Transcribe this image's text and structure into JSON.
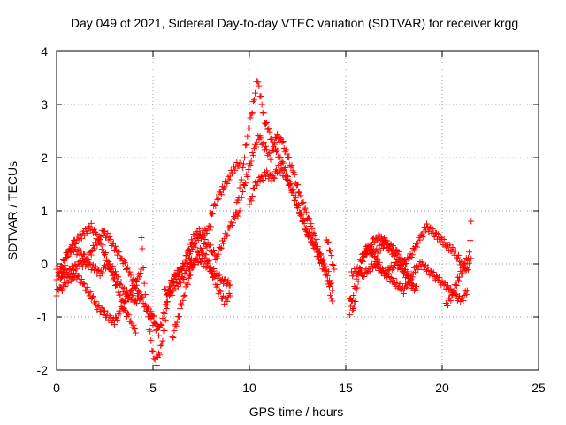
{
  "chart_data": {
    "type": "scatter",
    "title": "Day 049 of 2021, Sidereal Day-to-day VTEC variation (SDTVAR) for receiver krgg",
    "xlabel": "GPS time / hours",
    "ylabel": "SDTVAR / TECUs",
    "xlim": [
      0,
      25
    ],
    "ylim": [
      -2,
      4
    ],
    "x_ticks": [
      0,
      5,
      10,
      15,
      20,
      25
    ],
    "y_ticks": [
      -2,
      -1,
      0,
      1,
      2,
      3,
      4
    ],
    "x_tick_labels": [
      "0",
      "5",
      "10",
      "15",
      "20",
      "25"
    ],
    "y_tick_labels": [
      "-2",
      "-1",
      "0",
      "1",
      "2",
      "3",
      "4"
    ],
    "grid": true,
    "marker": "plus",
    "series": [
      {
        "name": "satellite tracks",
        "color": "#ff0000",
        "tracks": [
          [
            [
              0.0,
              -0.6
            ],
            [
              0.3,
              -0.2
            ],
            [
              0.6,
              0.2
            ],
            [
              0.9,
              0.4
            ],
            [
              1.2,
              0.5
            ],
            [
              1.5,
              0.6
            ],
            [
              1.8,
              0.7
            ],
            [
              2.1,
              0.5
            ],
            [
              2.4,
              0.3
            ],
            [
              2.7,
              0.0
            ],
            [
              3.0,
              -0.3
            ],
            [
              3.3,
              -0.6
            ],
            [
              3.6,
              -0.9
            ],
            [
              3.9,
              -1.1
            ],
            [
              4.1,
              -1.3
            ]
          ],
          [
            [
              0.0,
              -0.3
            ],
            [
              0.4,
              0.1
            ],
            [
              0.8,
              0.3
            ],
            [
              1.2,
              0.2
            ],
            [
              1.6,
              0.1
            ],
            [
              2.0,
              0.35
            ],
            [
              2.4,
              0.6
            ],
            [
              2.7,
              0.5
            ],
            [
              3.0,
              0.3
            ],
            [
              3.4,
              0.1
            ],
            [
              3.8,
              -0.2
            ],
            [
              4.2,
              -0.5
            ],
            [
              4.6,
              -0.8
            ],
            [
              5.0,
              -1.0
            ],
            [
              5.3,
              -1.2
            ]
          ],
          [
            [
              0.0,
              -0.1
            ],
            [
              0.4,
              -0.2
            ],
            [
              0.8,
              -0.1
            ],
            [
              1.2,
              0.0
            ],
            [
              1.6,
              0.0
            ],
            [
              2.0,
              -0.1
            ],
            [
              2.3,
              -0.2
            ],
            [
              2.6,
              0.0
            ],
            [
              2.9,
              -0.1
            ],
            [
              3.2,
              -0.3
            ],
            [
              3.5,
              -0.5
            ],
            [
              3.8,
              -0.6
            ],
            [
              4.1,
              -0.7
            ],
            [
              4.4,
              -0.6
            ]
          ],
          [
            [
              0.2,
              -0.5
            ],
            [
              0.6,
              -0.3
            ],
            [
              1.0,
              -0.2
            ],
            [
              1.4,
              -0.4
            ],
            [
              1.8,
              -0.6
            ],
            [
              2.1,
              -0.8
            ],
            [
              2.4,
              -0.9
            ],
            [
              2.7,
              -1.0
            ],
            [
              3.0,
              -1.1
            ],
            [
              3.3,
              -0.9
            ],
            [
              3.6,
              -0.7
            ],
            [
              3.9,
              -0.5
            ],
            [
              4.2,
              -0.3
            ],
            [
              4.4,
              -0.1
            ]
          ],
          [
            [
              4.4,
              0.5
            ],
            [
              4.6,
              -0.6
            ],
            [
              4.8,
              -1.2
            ],
            [
              5.0,
              -1.7
            ],
            [
              5.2,
              -1.85
            ],
            [
              5.4,
              -1.6
            ],
            [
              5.6,
              -1.2
            ],
            [
              5.8,
              -0.6
            ],
            [
              6.0,
              -0.3
            ],
            [
              6.3,
              -0.2
            ],
            [
              6.6,
              0.0
            ],
            [
              7.0,
              0.1
            ]
          ],
          [
            [
              4.8,
              -0.9
            ],
            [
              5.0,
              -1.1
            ],
            [
              5.3,
              -1.3
            ],
            [
              5.6,
              -0.9
            ],
            [
              5.9,
              -0.4
            ],
            [
              6.2,
              -0.2
            ],
            [
              6.5,
              -0.1
            ],
            [
              6.8,
              0.2
            ],
            [
              7.1,
              0.3
            ],
            [
              7.4,
              0.5
            ],
            [
              7.7,
              0.6
            ],
            [
              8.0,
              0.7
            ]
          ],
          [
            [
              5.6,
              -0.5
            ],
            [
              5.9,
              -0.6
            ],
            [
              6.2,
              -0.4
            ],
            [
              6.5,
              -0.3
            ],
            [
              6.8,
              -0.1
            ],
            [
              7.1,
              0.0
            ],
            [
              7.4,
              0.1
            ],
            [
              7.7,
              0.0
            ],
            [
              8.0,
              -0.1
            ],
            [
              8.3,
              -0.2
            ],
            [
              8.6,
              -0.3
            ],
            [
              9.0,
              -0.4
            ]
          ],
          [
            [
              6.0,
              -1.4
            ],
            [
              6.3,
              -1.0
            ],
            [
              6.6,
              -0.6
            ],
            [
              6.9,
              -0.2
            ],
            [
              7.2,
              0.1
            ],
            [
              7.5,
              0.3
            ],
            [
              7.8,
              0.1
            ],
            [
              8.1,
              -0.2
            ],
            [
              8.4,
              -0.5
            ],
            [
              8.7,
              -0.7
            ],
            [
              9.0,
              -0.6
            ]
          ],
          [
            [
              6.8,
              0.2
            ],
            [
              7.1,
              0.5
            ],
            [
              7.4,
              0.6
            ],
            [
              7.7,
              0.4
            ],
            [
              8.0,
              0.3
            ],
            [
              8.3,
              0.1
            ],
            [
              8.6,
              0.4
            ],
            [
              9.0,
              0.7
            ],
            [
              9.3,
              0.9
            ],
            [
              9.5,
              1.0
            ]
          ],
          [
            [
              8.0,
              0.9
            ],
            [
              8.3,
              1.2
            ],
            [
              8.6,
              1.4
            ],
            [
              8.9,
              1.6
            ],
            [
              9.2,
              1.8
            ],
            [
              9.5,
              1.9
            ]
          ],
          [
            [
              9.3,
              1.0
            ],
            [
              9.6,
              1.6
            ],
            [
              9.8,
              2.2
            ],
            [
              10.0,
              2.6
            ],
            [
              10.2,
              3.0
            ],
            [
              10.4,
              3.5
            ],
            [
              10.6,
              3.1
            ],
            [
              10.8,
              2.7
            ],
            [
              11.0,
              2.5
            ],
            [
              11.2,
              2.3
            ],
            [
              11.4,
              2.1
            ],
            [
              11.6,
              2.0
            ],
            [
              11.8,
              1.8
            ],
            [
              12.0,
              1.6
            ],
            [
              12.2,
              1.4
            ],
            [
              12.4,
              1.2
            ],
            [
              12.6,
              1.0
            ],
            [
              12.8,
              0.8
            ],
            [
              13.0,
              0.6
            ],
            [
              13.3,
              0.4
            ],
            [
              13.6,
              0.2
            ],
            [
              13.9,
              0.0
            ]
          ],
          [
            [
              9.6,
              1.3
            ],
            [
              9.9,
              1.7
            ],
            [
              10.2,
              2.1
            ],
            [
              10.5,
              2.4
            ],
            [
              10.8,
              2.2
            ],
            [
              11.1,
              2.0
            ],
            [
              11.4,
              2.4
            ],
            [
              11.7,
              2.3
            ],
            [
              12.0,
              2.0
            ],
            [
              12.3,
              1.7
            ],
            [
              12.6,
              1.3
            ],
            [
              12.9,
              1.0
            ],
            [
              13.2,
              0.7
            ],
            [
              13.5,
              0.4
            ],
            [
              13.8,
              0.0
            ],
            [
              14.1,
              -0.2
            ],
            [
              14.3,
              -0.5
            ]
          ],
          [
            [
              10.0,
              1.1
            ],
            [
              10.3,
              1.5
            ],
            [
              10.6,
              1.6
            ],
            [
              10.9,
              1.7
            ],
            [
              11.2,
              1.6
            ],
            [
              11.5,
              1.8
            ],
            [
              11.8,
              1.7
            ],
            [
              12.1,
              1.5
            ],
            [
              12.4,
              1.2
            ],
            [
              12.7,
              0.9
            ],
            [
              13.0,
              0.6
            ],
            [
              13.3,
              0.4
            ],
            [
              13.6,
              0.1
            ],
            [
              13.9,
              -0.1
            ],
            [
              14.1,
              -0.4
            ],
            [
              14.3,
              -0.7
            ]
          ],
          [
            [
              14.0,
              0.5
            ],
            [
              14.2,
              0.2
            ],
            [
              14.4,
              -0.1
            ]
          ],
          [
            [
              15.2,
              -0.6
            ],
            [
              15.4,
              -0.9
            ],
            [
              15.6,
              -0.4
            ],
            [
              15.9,
              0.1
            ],
            [
              16.2,
              0.3
            ],
            [
              16.5,
              0.2
            ],
            [
              16.8,
              0.3
            ],
            [
              17.1,
              0.4
            ],
            [
              17.4,
              0.3
            ],
            [
              17.7,
              0.2
            ],
            [
              18.0,
              0.0
            ],
            [
              18.3,
              0.1
            ],
            [
              18.6,
              0.3
            ],
            [
              18.9,
              0.5
            ],
            [
              19.2,
              0.7
            ],
            [
              19.5,
              0.6
            ],
            [
              19.8,
              0.5
            ],
            [
              20.1,
              0.4
            ],
            [
              20.4,
              0.3
            ],
            [
              20.7,
              0.2
            ],
            [
              21.0,
              0.0
            ],
            [
              21.3,
              -0.1
            ],
            [
              21.5,
              0.1
            ]
          ],
          [
            [
              15.3,
              -0.2
            ],
            [
              15.6,
              -0.1
            ],
            [
              15.9,
              -0.2
            ],
            [
              16.2,
              -0.1
            ],
            [
              16.5,
              0.0
            ],
            [
              16.8,
              -0.1
            ],
            [
              17.1,
              -0.2
            ],
            [
              17.4,
              -0.3
            ],
            [
              17.7,
              -0.4
            ],
            [
              18.0,
              -0.5
            ],
            [
              18.3,
              -0.3
            ],
            [
              18.6,
              -0.1
            ],
            [
              18.9,
              0.0
            ],
            [
              19.2,
              -0.1
            ],
            [
              19.5,
              -0.2
            ],
            [
              19.8,
              -0.3
            ],
            [
              20.1,
              -0.4
            ],
            [
              20.4,
              -0.5
            ],
            [
              20.7,
              -0.6
            ],
            [
              21.0,
              -0.7
            ],
            [
              21.3,
              -0.5
            ]
          ],
          [
            [
              15.2,
              -0.9
            ],
            [
              15.5,
              -0.4
            ],
            [
              15.8,
              0.1
            ],
            [
              16.1,
              0.3
            ],
            [
              16.4,
              0.2
            ],
            [
              16.7,
              0.0
            ],
            [
              17.0,
              -0.2
            ],
            [
              17.3,
              -0.1
            ],
            [
              17.6,
              0.0
            ],
            [
              17.9,
              -0.1
            ],
            [
              18.2,
              -0.2
            ],
            [
              18.5,
              -0.4
            ]
          ],
          [
            [
              16.0,
              0.2
            ],
            [
              16.3,
              0.4
            ],
            [
              16.6,
              0.5
            ],
            [
              16.9,
              0.5
            ],
            [
              17.2,
              0.3
            ],
            [
              17.5,
              0.2
            ],
            [
              17.8,
              0.0
            ],
            [
              18.1,
              -0.2
            ],
            [
              18.4,
              -0.4
            ],
            [
              18.7,
              -0.5
            ]
          ],
          [
            [
              20.2,
              -0.8
            ],
            [
              20.5,
              -0.6
            ],
            [
              20.8,
              -0.3
            ],
            [
              21.1,
              -0.1
            ],
            [
              21.4,
              0.2
            ],
            [
              21.5,
              0.8
            ]
          ]
        ]
      }
    ]
  }
}
